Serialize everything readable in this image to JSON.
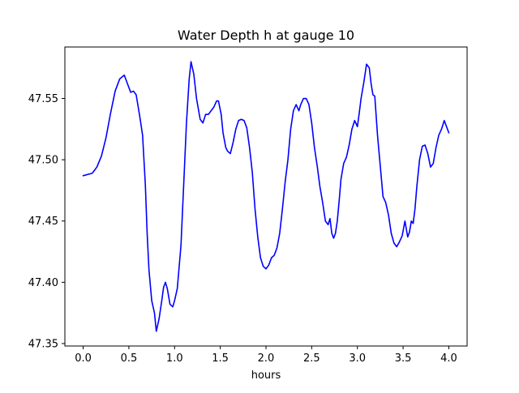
{
  "chart_data": {
    "type": "line",
    "title": "Water Depth h at gauge 10",
    "xlabel": "hours",
    "ylabel": "",
    "xlim": [
      -0.2,
      4.2
    ],
    "ylim": [
      47.348,
      47.592
    ],
    "x_ticks": [
      0.0,
      0.5,
      1.0,
      1.5,
      2.0,
      2.5,
      3.0,
      3.5,
      4.0
    ],
    "x_tick_labels": [
      "0.0",
      "0.5",
      "1.0",
      "1.5",
      "2.0",
      "2.5",
      "3.0",
      "3.5",
      "4.0"
    ],
    "y_ticks": [
      47.35,
      47.4,
      47.45,
      47.5,
      47.55
    ],
    "y_tick_labels": [
      "47.35",
      "47.40",
      "47.45",
      "47.50",
      "47.55"
    ],
    "grid": false,
    "legend": "none",
    "series": [
      {
        "color": "#0000ff",
        "x": [
          0.0,
          0.1,
          0.15,
          0.2,
          0.25,
          0.3,
          0.35,
          0.4,
          0.45,
          0.48,
          0.52,
          0.55,
          0.58,
          0.62,
          0.65,
          0.68,
          0.7,
          0.72,
          0.75,
          0.78,
          0.8,
          0.83,
          0.86,
          0.88,
          0.9,
          0.92,
          0.95,
          0.98,
          1.0,
          1.03,
          1.07,
          1.1,
          1.13,
          1.16,
          1.18,
          1.21,
          1.24,
          1.28,
          1.31,
          1.34,
          1.37,
          1.4,
          1.43,
          1.46,
          1.48,
          1.51,
          1.53,
          1.56,
          1.58,
          1.61,
          1.64,
          1.67,
          1.7,
          1.73,
          1.76,
          1.79,
          1.82,
          1.85,
          1.88,
          1.91,
          1.94,
          1.97,
          2.0,
          2.03,
          2.06,
          2.09,
          2.12,
          2.15,
          2.18,
          2.21,
          2.24,
          2.27,
          2.3,
          2.33,
          2.36,
          2.38,
          2.41,
          2.44,
          2.47,
          2.5,
          2.53,
          2.56,
          2.59,
          2.62,
          2.65,
          2.68,
          2.7,
          2.72,
          2.74,
          2.76,
          2.78,
          2.8,
          2.82,
          2.85,
          2.88,
          2.91,
          2.94,
          2.97,
          3.0,
          3.02,
          3.04,
          3.07,
          3.1,
          3.13,
          3.15,
          3.17,
          3.19,
          3.22,
          3.25,
          3.28,
          3.31,
          3.34,
          3.37,
          3.4,
          3.43,
          3.46,
          3.49,
          3.52,
          3.55,
          3.57,
          3.59,
          3.61,
          3.63,
          3.65,
          3.68,
          3.71,
          3.74,
          3.77,
          3.8,
          3.83,
          3.86,
          3.89,
          3.92,
          3.95,
          3.98,
          4.0
        ],
        "y": [
          47.487,
          47.489,
          47.494,
          47.503,
          47.518,
          47.538,
          47.556,
          47.566,
          47.569,
          47.563,
          47.555,
          47.556,
          47.553,
          47.535,
          47.52,
          47.48,
          47.44,
          47.41,
          47.385,
          47.375,
          47.36,
          47.37,
          47.385,
          47.396,
          47.4,
          47.395,
          47.382,
          47.38,
          47.385,
          47.395,
          47.43,
          47.48,
          47.53,
          47.566,
          47.58,
          47.57,
          47.55,
          47.533,
          47.53,
          47.537,
          47.537,
          47.54,
          47.543,
          47.548,
          47.548,
          47.537,
          47.522,
          47.51,
          47.507,
          47.505,
          47.514,
          47.525,
          47.532,
          47.533,
          47.532,
          47.526,
          47.51,
          47.49,
          47.46,
          47.437,
          47.42,
          47.413,
          47.411,
          47.414,
          47.42,
          47.422,
          47.428,
          47.44,
          47.46,
          47.482,
          47.5,
          47.525,
          47.54,
          47.545,
          47.54,
          47.545,
          47.55,
          47.55,
          47.545,
          47.53,
          47.51,
          47.495,
          47.478,
          47.465,
          47.45,
          47.447,
          47.452,
          47.44,
          47.436,
          47.44,
          47.45,
          47.466,
          47.484,
          47.497,
          47.502,
          47.512,
          47.525,
          47.532,
          47.527,
          47.538,
          47.55,
          47.563,
          47.578,
          47.575,
          47.562,
          47.553,
          47.552,
          47.52,
          47.495,
          47.47,
          47.465,
          47.455,
          47.44,
          47.432,
          47.429,
          47.433,
          47.438,
          47.45,
          47.437,
          47.441,
          47.45,
          47.448,
          47.46,
          47.478,
          47.5,
          47.511,
          47.512,
          47.505,
          47.494,
          47.497,
          47.51,
          47.52,
          47.525,
          47.532,
          47.526,
          47.522
        ]
      }
    ]
  }
}
